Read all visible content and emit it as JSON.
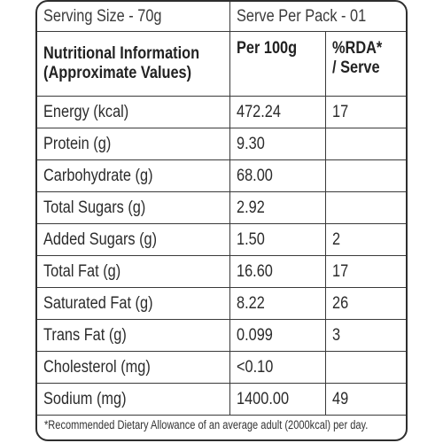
{
  "serving": {
    "size": "Serving Size - 70g",
    "per_pack": "Serve Per Pack - 01"
  },
  "headers": {
    "col1": "Nutritional Information",
    "col1_sub": "(Approximate Values)",
    "col2": "Per 100g",
    "col3": "%RDA*",
    "col3_sub": "/ Serve"
  },
  "rows": [
    {
      "name": "Energy (kcal)",
      "per100g": "472.24",
      "rda": "17"
    },
    {
      "name": "Protein (g)",
      "per100g": "9.30",
      "rda": ""
    },
    {
      "name": "Carbohydrate (g)",
      "per100g": "68.00",
      "rda": ""
    },
    {
      "name": "Total Sugars (g)",
      "per100g": "2.92",
      "rda": ""
    },
    {
      "name": "Added Sugars (g)",
      "per100g": "1.50",
      "rda": "2"
    },
    {
      "name": "Total Fat (g)",
      "per100g": "16.60",
      "rda": "17"
    },
    {
      "name": "Saturated Fat (g)",
      "per100g": "8.22",
      "rda": "26"
    },
    {
      "name": "Trans Fat (g)",
      "per100g": "0.099",
      "rda": "3"
    },
    {
      "name": "Cholesterol (mg)",
      "per100g": "<0.10",
      "rda": ""
    },
    {
      "name": "Sodium (mg)",
      "per100g": "1400.00",
      "rda": "49"
    }
  ],
  "footnote": "*Recommended Dietary Allowance of an average adult (2000kcal) per day."
}
